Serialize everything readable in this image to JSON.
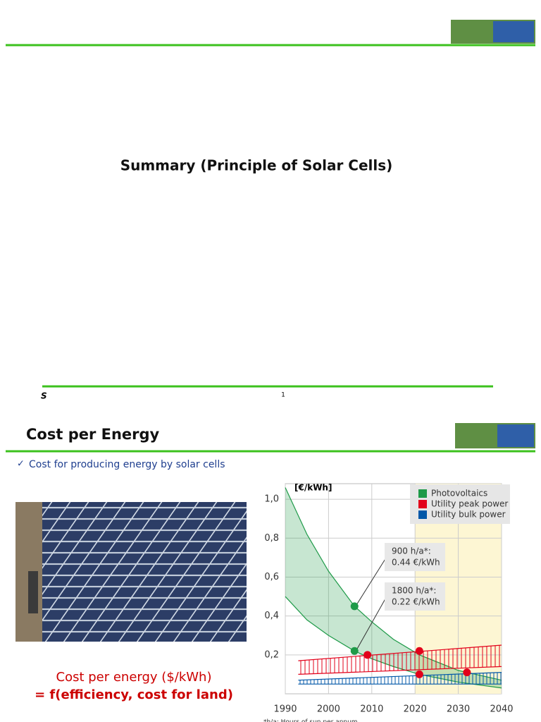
{
  "slides": [
    {
      "title": "Summary (Principle of Solar Cells)",
      "footer_left": "S",
      "page_number": "1"
    },
    {
      "title": "Cost per Energy",
      "bullet": "Cost for producing energy by solar cells",
      "caption": [
        "Cost per energy ($/kWh)",
        "= f(efficiency, cost for land)"
      ],
      "chart": {
        "type": "band",
        "ylabel": "[€/kWh]",
        "xlim": [
          1990,
          2040
        ],
        "ylim": [
          0,
          1.08
        ],
        "xticks": [
          1990,
          2000,
          2010,
          2020,
          2030,
          2040
        ],
        "yticks": [
          {
            "value": 0.2,
            "label": "0,2"
          },
          {
            "value": 0.4,
            "label": "0,4"
          },
          {
            "value": 0.6,
            "label": "0,6"
          },
          {
            "value": 0.8,
            "label": "0,8"
          },
          {
            "value": 1.0,
            "label": "1,0"
          }
        ],
        "grid": true,
        "series": [
          {
            "name": "Photovoltaics",
            "color": "#1e9a48",
            "x": [
              1990,
              1995,
              2000,
              2006,
              2010,
              2015,
              2021,
              2030,
              2040
            ],
            "upper": [
              1.06,
              0.82,
              0.63,
              0.45,
              0.37,
              0.28,
              0.2,
              0.12,
              0.07
            ],
            "lower": [
              0.5,
              0.38,
              0.3,
              0.22,
              0.18,
              0.14,
              0.1,
              0.06,
              0.03
            ]
          },
          {
            "name": "Utility peak power",
            "color": "#e2001a",
            "x": [
              1993,
              2040
            ],
            "upper": [
              0.17,
              0.25
            ],
            "lower": [
              0.1,
              0.14
            ]
          },
          {
            "name": "Utility bulk power",
            "color": "#0057a8",
            "x": [
              1993,
              2040
            ],
            "upper": [
              0.07,
              0.11
            ],
            "lower": [
              0.05,
              0.05
            ]
          }
        ],
        "points": [
          {
            "x": 2006,
            "y": 0.45,
            "color": "#1e9a48"
          },
          {
            "x": 2006,
            "y": 0.22,
            "color": "#1e9a48"
          },
          {
            "x": 2009,
            "y": 0.2,
            "color": "#e2001a"
          },
          {
            "x": 2021,
            "y": 0.22,
            "color": "#e2001a"
          },
          {
            "x": 2021,
            "y": 0.1,
            "color": "#e2001a"
          },
          {
            "x": 2032,
            "y": 0.11,
            "color": "#e2001a"
          }
        ],
        "annotations": [
          [
            "900 h/a*:",
            "0.44 €/kWh"
          ],
          [
            "1800 h/a*:",
            "0.22 €/kWh"
          ]
        ],
        "footnote": "*h/a: Hours of sun per annum"
      }
    }
  ]
}
